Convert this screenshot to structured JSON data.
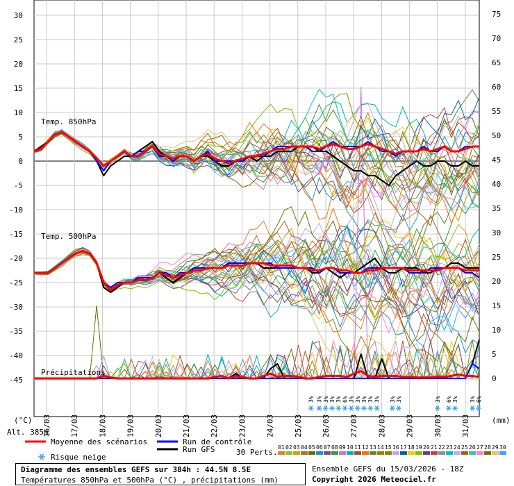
{
  "chart_data": {
    "type": "line",
    "left_axis": {
      "unit": "(°C)",
      "ticks": [
        30,
        25,
        20,
        15,
        10,
        5,
        0,
        -5,
        -10,
        -15,
        -20,
        -25,
        -30,
        -35,
        -40,
        -45
      ]
    },
    "right_axis": {
      "unit": "(mm)",
      "ticks": [
        75,
        70,
        65,
        60,
        55,
        50,
        45,
        40,
        35,
        30,
        25,
        20,
        15,
        10,
        5,
        0
      ]
    },
    "dates": [
      "16/03",
      "17/03",
      "18/03",
      "19/03",
      "20/03",
      "21/03",
      "22/03",
      "23/03",
      "24/03",
      "25/03",
      "26/03",
      "27/03",
      "28/03",
      "29/03",
      "30/03",
      "31/03"
    ],
    "section_labels": {
      "t850": "Temp. 850hPa",
      "t500": "Temp. 500hPa",
      "precip": "Précipitations"
    },
    "altitude": "Alt. 385m",
    "x_steps": 64,
    "t850_mean": [
      2,
      2.5,
      4,
      5.5,
      6,
      5,
      4,
      3,
      2,
      0.5,
      -1,
      0,
      1,
      2,
      1,
      1,
      2,
      3,
      1.5,
      1,
      0.5,
      1,
      1,
      0,
      1,
      1.5,
      0.5,
      0,
      -0.5,
      0,
      0.5,
      1,
      1,
      1.5,
      2,
      2.5,
      2.5,
      3,
      3,
      3,
      3,
      2.5,
      3,
      3.5,
      3,
      2.5,
      2.5,
      3,
      3.5,
      3,
      2.5,
      2,
      1.5,
      2,
      2,
      2,
      2.5,
      2,
      2.5,
      3,
      2,
      2,
      2.5,
      3,
      3
    ],
    "t850_gfs": [
      2,
      3,
      4,
      5.5,
      6,
      5,
      4,
      3,
      2,
      0,
      -3,
      -1,
      0,
      1,
      1,
      2,
      3,
      4,
      2,
      1,
      0,
      1,
      1,
      0,
      1,
      1,
      0,
      -1,
      -1,
      0,
      0,
      1,
      0,
      1,
      1,
      2,
      2,
      2,
      3,
      3,
      3,
      2,
      2,
      1,
      0,
      -1,
      -2,
      -2,
      -3,
      -3,
      -4,
      -5,
      -3,
      -2,
      -1,
      0,
      -1,
      -1,
      0,
      0,
      -1,
      -1,
      0,
      -1,
      -1
    ],
    "t850_ctrl": [
      2,
      2.5,
      4,
      5.5,
      6,
      5,
      4,
      3,
      2,
      0,
      -2,
      0,
      1,
      2,
      1,
      2,
      2,
      3,
      1,
      1,
      0,
      1,
      1,
      0,
      1,
      2,
      0,
      0,
      0,
      0,
      0,
      1,
      1,
      1,
      2,
      3,
      3,
      3,
      3,
      3,
      2,
      2,
      3,
      4,
      3,
      3,
      3,
      3,
      4,
      3,
      2,
      2,
      1,
      2,
      2,
      2,
      3,
      2,
      2,
      3,
      2,
      2,
      3,
      3,
      3
    ],
    "t500_mean": [
      -23,
      -23,
      -23,
      -22,
      -21,
      -20,
      -19,
      -18.5,
      -19,
      -21,
      -25,
      -26.5,
      -25.5,
      -25,
      -25,
      -24.5,
      -24.5,
      -24,
      -23,
      -23.5,
      -24,
      -23.5,
      -23,
      -22.5,
      -22.5,
      -22,
      -22,
      -22,
      -21.5,
      -21.5,
      -21.5,
      -21,
      -21,
      -21,
      -21.5,
      -21.5,
      -21.5,
      -21.5,
      -22,
      -22,
      -22.5,
      -22.5,
      -22,
      -22,
      -22.5,
      -22.5,
      -23,
      -23,
      -22.5,
      -22.5,
      -22,
      -22,
      -22,
      -22,
      -22.5,
      -22.5,
      -22.5,
      -22.5,
      -22.5,
      -22,
      -22,
      -22,
      -22.5,
      -22.5,
      -22.5
    ],
    "t500_gfs": [
      -23,
      -23,
      -23,
      -22,
      -21,
      -20,
      -19,
      -18.5,
      -19,
      -21,
      -26,
      -27,
      -26,
      -25,
      -25,
      -24,
      -24,
      -24,
      -23,
      -24,
      -25,
      -24,
      -23,
      -22,
      -22,
      -22,
      -22,
      -22,
      -21,
      -21,
      -21,
      -21,
      -21,
      -22,
      -22,
      -22,
      -22,
      -22,
      -22,
      -22,
      -23,
      -23,
      -22,
      -23,
      -24,
      -23,
      -23,
      -22,
      -21,
      -20,
      -22,
      -23,
      -23,
      -22,
      -22,
      -22,
      -23,
      -23,
      -22,
      -22,
      -21,
      -21,
      -22,
      -22,
      -22
    ],
    "t500_ctrl": [
      -23,
      -23,
      -23,
      -22,
      -21,
      -20,
      -19,
      -18.5,
      -19,
      -21,
      -25,
      -26,
      -25,
      -25,
      -25,
      -24,
      -24,
      -24,
      -23,
      -23,
      -24,
      -23,
      -23,
      -22,
      -22,
      -22,
      -22,
      -22,
      -21,
      -21,
      -21,
      -21,
      -21,
      -21,
      -21,
      -22,
      -22,
      -22,
      -22,
      -22,
      -22,
      -23,
      -22,
      -22,
      -23,
      -23,
      -23,
      -23,
      -22,
      -22,
      -22,
      -22,
      -22,
      -22,
      -23,
      -23,
      -23,
      -22,
      -22,
      -22,
      -22,
      -22,
      -23,
      -23,
      -24
    ],
    "precip_mean_mm": [
      0,
      0,
      0,
      0,
      0,
      0,
      0,
      0,
      0,
      0,
      0.5,
      0.2,
      0,
      0,
      0,
      0,
      0,
      0,
      0,
      0,
      0,
      0,
      0,
      0,
      0,
      0,
      0.3,
      0.5,
      0,
      0.5,
      0.2,
      0,
      0,
      0.5,
      1,
      0.3,
      0.5,
      0.5,
      0.3,
      0,
      0,
      0.3,
      0.5,
      0.5,
      0.5,
      0.3,
      1,
      1.5,
      0.5,
      0.3,
      0.5,
      0.5,
      0.5,
      0.3,
      0.3,
      0.2,
      0.2,
      0.2,
      0.3,
      0.3,
      0.5,
      0.8,
      0.5,
      0.5,
      0.3
    ],
    "precip_gfs_mm": [
      0,
      0,
      0,
      0,
      0,
      0,
      0,
      0,
      0,
      0,
      0,
      0,
      0,
      0,
      0,
      0,
      0,
      0,
      0,
      0,
      0,
      0,
      0,
      0,
      0,
      0,
      0,
      0,
      0,
      1,
      0,
      0,
      0,
      0,
      2,
      3,
      0,
      0,
      0,
      0,
      0,
      0,
      0,
      0,
      0,
      0,
      0,
      5,
      0,
      0,
      4,
      0,
      0,
      0,
      0,
      0,
      0,
      0,
      0,
      0,
      0,
      0,
      0,
      3,
      8
    ],
    "precip_ctrl_mm": [
      0,
      0,
      0,
      0,
      0,
      0,
      0,
      0,
      0,
      0,
      0,
      0,
      0,
      0,
      0,
      0,
      0,
      0,
      0,
      0,
      0,
      0,
      0,
      0,
      0,
      0,
      0,
      0,
      0,
      0,
      0,
      0,
      0,
      0,
      0,
      0,
      0,
      0,
      0,
      0,
      0,
      0,
      0,
      0,
      0,
      0,
      0,
      0,
      0,
      0,
      0,
      0,
      0,
      0,
      0,
      0,
      0,
      0,
      0,
      0,
      0,
      0,
      0,
      3,
      2
    ],
    "snow_risk": [
      {
        "date_pos": 39.8,
        "labels": [
          "3%"
        ]
      },
      {
        "date_pos": 41,
        "labels": [
          "3%",
          "3%",
          "3%",
          "3%",
          "6%",
          "3%",
          "3%",
          "3%",
          "3%",
          "3%"
        ]
      },
      {
        "date_pos": 51.5,
        "labels": [
          "3%",
          "3%"
        ]
      },
      {
        "date_pos": 58,
        "labels": [
          "3%"
        ]
      },
      {
        "date_pos": 59.6,
        "labels": [
          "6%",
          "3%"
        ]
      },
      {
        "date_pos": 63,
        "labels": [
          "3%",
          "6%"
        ]
      }
    ],
    "series_colors": {
      "mean": "#ff0000",
      "control": "#0000ff",
      "gfs": "#000000",
      "perturbations": [
        "#e87d2a",
        "#8bbd3f",
        "#c9a400",
        "#b07030",
        "#6b6b00",
        "#1e90c8",
        "#7a4a8a",
        "#3a9a3a",
        "#d070d0",
        "#00b0b0",
        "#a0522d",
        "#ff6a00",
        "#5a8a3a",
        "#aa7700",
        "#888800",
        "#c8a0e8",
        "#0060a8",
        "#e8d000",
        "#7cc000",
        "#6a3a8a",
        "#c04040",
        "#909090",
        "#00c0c0",
        "#b0b0ff",
        "#a06020",
        "#40c0a0",
        "#ff80c0",
        "#707000",
        "#f0c060",
        "#40a0ff"
      ]
    }
  },
  "legend": {
    "mean": "Moyenne des scénarios",
    "control": "Run de contrôle",
    "gfs": "Run GFS",
    "snow": "Risque neige",
    "perts": "30 Perts.",
    "pert_numbers": [
      "01",
      "02",
      "03",
      "04",
      "05",
      "06",
      "07",
      "08",
      "09",
      "10",
      "11",
      "12",
      "13",
      "14",
      "15",
      "16",
      "17",
      "18",
      "19",
      "20",
      "21",
      "22",
      "23",
      "24",
      "25",
      "26",
      "27",
      "28",
      "29",
      "30"
    ]
  },
  "title": {
    "line1": "Diagramme des ensembles GEFS sur 384h : 44.5N 8.5E",
    "line2": "Températures 850hPa et 500hPa (°C) , précipitations (mm)"
  },
  "credit": {
    "line1": "Ensemble GEFS du 15/03/2026 - 18Z",
    "line2": "Copyright 2026 Meteociel.fr"
  }
}
